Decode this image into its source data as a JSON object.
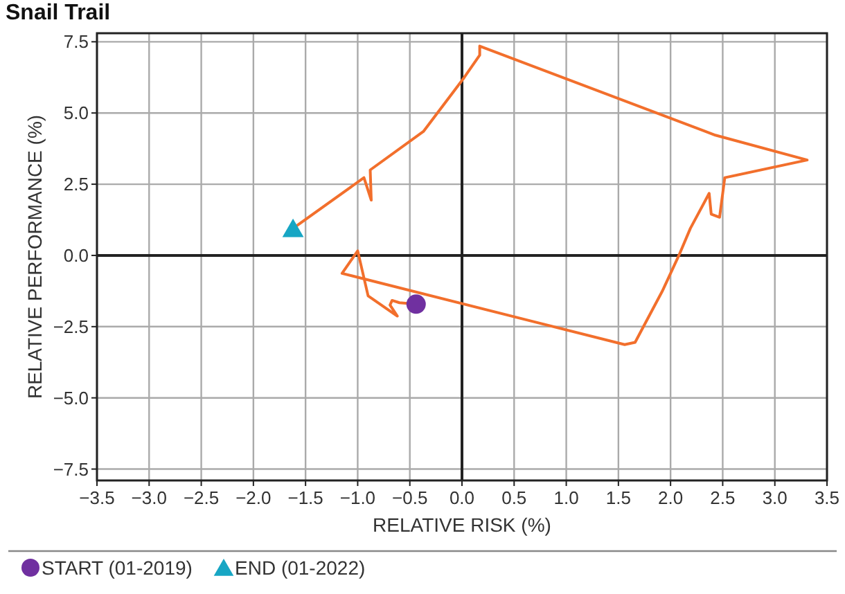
{
  "chart_data": {
    "type": "line",
    "title": "Snail Trail",
    "xlabel": "RELATIVE RISK (%)",
    "ylabel": "RELATIVE PERFORMANCE (%)",
    "xlim": [
      -3.5,
      3.5
    ],
    "ylim": [
      -7.9,
      7.8
    ],
    "xticks": [
      {
        "value": -3.5,
        "label": "−3.5"
      },
      {
        "value": -3,
        "label": "−3.0"
      },
      {
        "value": -2.5,
        "label": "−2.5"
      },
      {
        "value": -2,
        "label": "−2.0"
      },
      {
        "value": -1.5,
        "label": "−1.5"
      },
      {
        "value": -1,
        "label": "−1.0"
      },
      {
        "value": -0.5,
        "label": "−0.5"
      },
      {
        "value": 0,
        "label": "0.0"
      },
      0.5,
      {
        "value": 1,
        "label": "1.0"
      },
      1.5,
      {
        "value": 2,
        "label": "2.0"
      },
      2.5,
      {
        "value": 3,
        "label": "3.0"
      },
      3.5
    ],
    "yticks": [
      {
        "value": -7.5,
        "label": "−7.5"
      },
      {
        "value": -5,
        "label": "−5.0"
      },
      {
        "value": -2.5,
        "label": "−2.5"
      },
      {
        "value": 0,
        "label": "0.0"
      },
      2.5,
      {
        "value": 5,
        "label": "5.0"
      },
      7.5
    ],
    "grid": true,
    "legend": "bottom left",
    "series": [
      {
        "type": "line",
        "color": "#f26f2c",
        "marker": "none",
        "x": [
          -0.44,
          -0.6,
          -0.67,
          -0.69,
          -0.62,
          -0.9,
          -1.0,
          -1.15,
          1.56,
          1.66,
          1.92,
          2.08,
          2.19,
          2.37,
          2.39,
          2.47,
          2.52,
          3.31,
          2.43,
          0.17,
          0.17,
          0.02,
          -0.37,
          -0.88,
          -0.87,
          -0.94,
          -1.62
        ],
        "values": [
          -1.71,
          -1.66,
          -1.58,
          -1.74,
          -2.13,
          -1.42,
          0.16,
          -0.63,
          -3.13,
          -3.05,
          -1.26,
          0,
          0.95,
          2.18,
          1.45,
          1.34,
          2.73,
          3.35,
          4.22,
          7.35,
          7.03,
          6.24,
          4.35,
          3.0,
          1.94,
          2.73,
          0.95
        ]
      },
      {
        "type": "scatter",
        "name": "START (01-2019)",
        "color": "#7030a0",
        "marker": "circle",
        "x": [
          -0.44
        ],
        "values": [
          -1.71
        ]
      },
      {
        "type": "scatter",
        "name": "END (01-2022)",
        "color": "#17a6c4",
        "marker": "triangle",
        "x": [
          -1.62
        ],
        "values": [
          0.95
        ]
      }
    ]
  }
}
